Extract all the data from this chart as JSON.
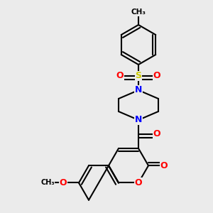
{
  "background_color": "#EBEBEB",
  "atom_colors": {
    "N": "#0000FF",
    "O": "#FF0000",
    "S": "#CCCC00",
    "C": "#000000"
  },
  "bond_color": "#000000",
  "line_width": 1.5,
  "figsize": [
    3.0,
    3.0
  ],
  "dpi": 100,
  "xlim": [
    0,
    300
  ],
  "ylim": [
    0,
    300
  ]
}
